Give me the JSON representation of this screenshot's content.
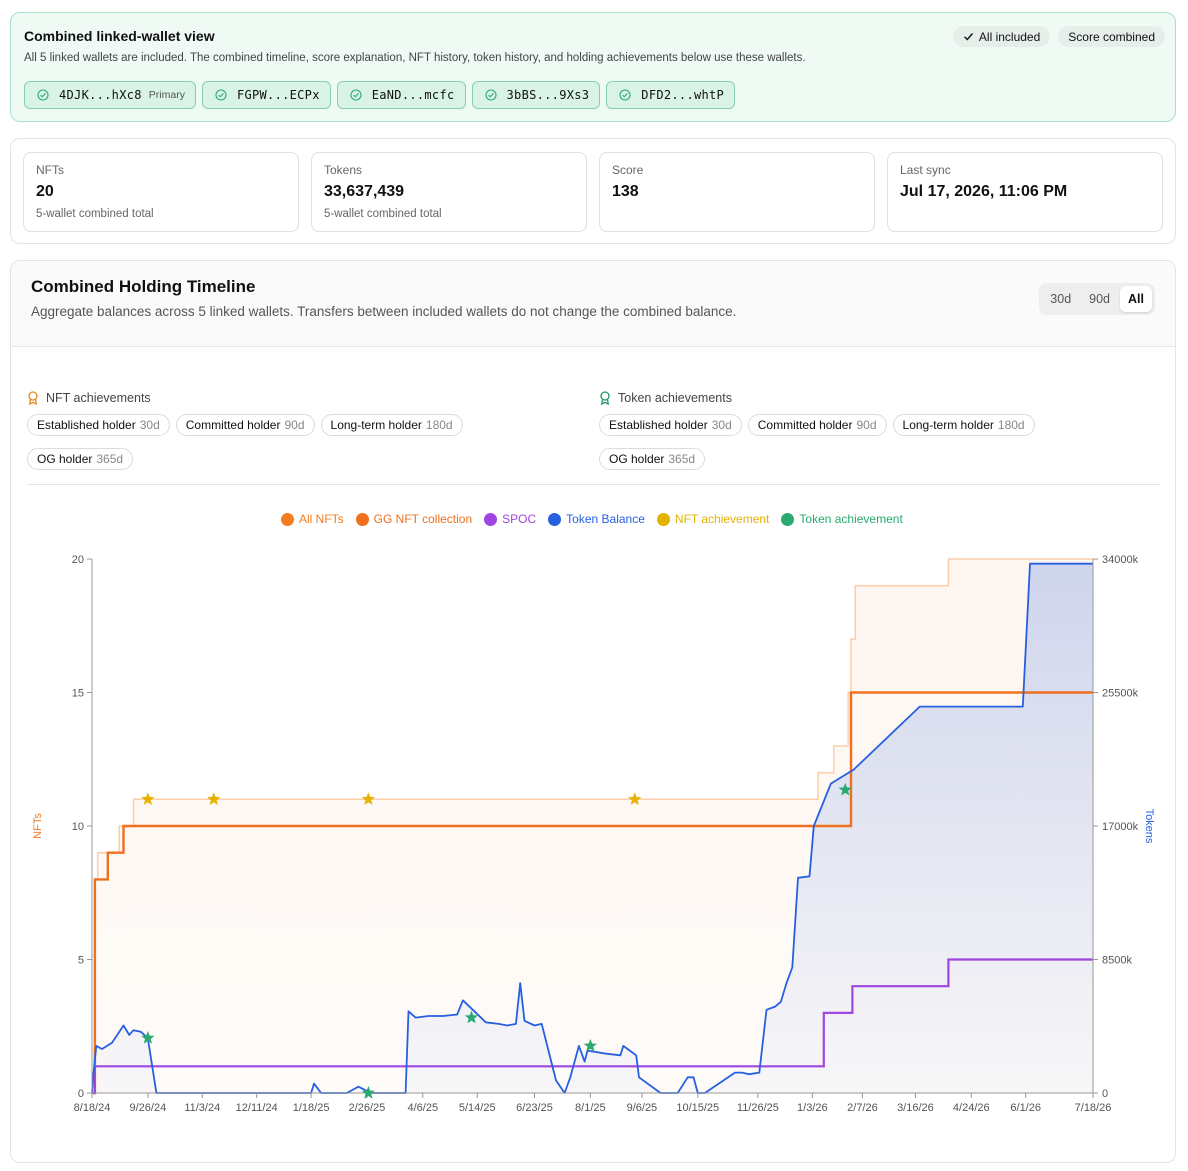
{
  "banner": {
    "title": "Combined linked-wallet view",
    "description": "All 5 linked wallets are included. The combined timeline, score explanation, NFT history, token history, and holding achievements below use these wallets.",
    "badges": {
      "all_included": "All included",
      "score_combined": "Score combined"
    },
    "wallets": [
      {
        "address": "4DJK...hXc8",
        "tag": "Primary"
      },
      {
        "address": "FGPW...ECPx",
        "tag": ""
      },
      {
        "address": "EaND...mcfc",
        "tag": ""
      },
      {
        "address": "3bBS...9Xs3",
        "tag": ""
      },
      {
        "address": "DFD2...whtP",
        "tag": ""
      }
    ]
  },
  "stats": [
    {
      "label": "NFTs",
      "value": "20",
      "sub": "5-wallet combined total"
    },
    {
      "label": "Tokens",
      "value": "33,637,439",
      "sub": "5-wallet combined total"
    },
    {
      "label": "Score",
      "value": "138",
      "sub": ""
    },
    {
      "label": "Last sync",
      "value": "Jul 17, 2026, 11:06 PM",
      "sub": ""
    }
  ],
  "timeline": {
    "title": "Combined Holding Timeline",
    "description": "Aggregate balances across 5 linked wallets. Transfers between included wallets do not change the combined balance.",
    "ranges": [
      "30d",
      "90d",
      "All"
    ],
    "active_range": "All",
    "nft_achievements": {
      "title": "NFT achievements",
      "items": [
        {
          "name": "Established holder",
          "dur": "30d"
        },
        {
          "name": "Committed holder",
          "dur": "90d"
        },
        {
          "name": "Long-term holder",
          "dur": "180d"
        },
        {
          "name": "OG holder",
          "dur": "365d"
        }
      ]
    },
    "token_achievements": {
      "title": "Token achievements",
      "items": [
        {
          "name": "Established holder",
          "dur": "30d"
        },
        {
          "name": "Committed holder",
          "dur": "90d"
        },
        {
          "name": "Long-term holder",
          "dur": "180d"
        },
        {
          "name": "OG holder",
          "dur": "365d"
        }
      ]
    }
  },
  "colors": {
    "all_nfts": "#f47b20",
    "gg_nft": "#f0701f",
    "spoc": "#a046e0",
    "token_balance": "#2660e0",
    "nft_achievement": "#e6b200",
    "token_achievement": "#2aaa70"
  },
  "chart_data": {
    "type": "line",
    "legend": [
      {
        "name": "All NFTs",
        "color": "#f47b20"
      },
      {
        "name": "GG NFT collection",
        "color": "#f0701f"
      },
      {
        "name": "SPOC",
        "color": "#a046e0"
      },
      {
        "name": "Token Balance",
        "color": "#2660e0"
      },
      {
        "name": "NFT achievement",
        "color": "#e6b200"
      },
      {
        "name": "Token achievement",
        "color": "#2aaa70"
      }
    ],
    "legend_position": "top-center",
    "x_start": "8/18/24",
    "x_end": "7/18/26",
    "x_ticks": [
      "8/18/24",
      "9/26/24",
      "11/3/24",
      "12/11/24",
      "1/18/25",
      "2/26/25",
      "4/6/25",
      "5/14/25",
      "6/23/25",
      "8/1/25",
      "9/6/25",
      "10/15/25",
      "11/26/25",
      "1/3/26",
      "2/7/26",
      "3/16/26",
      "4/24/26",
      "6/1/26",
      "7/18/26"
    ],
    "y_left": {
      "label": "NFTs",
      "range": [
        0,
        20
      ],
      "ticks": [
        0,
        5,
        10,
        15,
        20
      ],
      "tick_labels": [
        "0",
        "5",
        "10",
        "15",
        "20"
      ]
    },
    "y_right": {
      "label": "Tokens",
      "range": [
        0,
        34000000
      ],
      "ticks": [
        0,
        8500000,
        17000000,
        25500000,
        34000000
      ],
      "tick_labels": [
        "0",
        "8500k",
        "17000k",
        "25500k",
        "34000k"
      ]
    },
    "grid": false,
    "series": [
      {
        "name": "All NFTs",
        "axis": "left",
        "x": [
          "8/18/24",
          "8/20/24",
          "8/22/24",
          "8/25/24",
          "8/29/24",
          "9/6/24",
          "9/9/24",
          "9/16/24",
          "5/14/25",
          "9/6/25",
          "1/3/26",
          "1/7/26",
          "1/18/26",
          "1/28/26",
          "1/30/26",
          "2/2/26",
          "4/8/26",
          "7/18/26"
        ],
        "y": [
          0,
          8,
          9,
          9,
          9,
          10,
          10,
          11,
          11,
          11,
          11,
          12,
          13,
          15,
          17,
          19,
          20,
          20
        ]
      },
      {
        "name": "GG NFT collection",
        "axis": "left",
        "x": [
          "8/18/24",
          "8/20/24",
          "8/29/24",
          "9/9/24",
          "1/28/26",
          "1/30/26",
          "7/18/26"
        ],
        "y": [
          0,
          8,
          9,
          10,
          10,
          15,
          15
        ]
      },
      {
        "name": "SPOC",
        "axis": "left",
        "x": [
          "8/18/24",
          "8/20/24",
          "1/8/26",
          "1/11/26",
          "1/31/26",
          "4/8/26",
          "7/18/26"
        ],
        "y": [
          0,
          1,
          1,
          3,
          4,
          5,
          5
        ]
      },
      {
        "name": "Token Balance",
        "axis": "right",
        "x": [
          "8/18/24",
          "8/19/24",
          "8/21/24",
          "8/25/24",
          "9/1/24",
          "9/9/24",
          "9/13/24",
          "9/16/24",
          "9/21/24",
          "9/26/24",
          "10/2/24",
          "10/8/24",
          "1/18/25",
          "1/20/25",
          "1/25/25",
          "2/12/25",
          "2/20/25",
          "3/1/25",
          "3/10/25",
          "3/25/25",
          "3/27/25",
          "4/1/25",
          "4/10/25",
          "4/20/25",
          "4/30/25",
          "5/4/25",
          "5/12/25",
          "5/20/25",
          "5/29/25",
          "6/4/25",
          "6/10/25",
          "6/13/25",
          "6/16/25",
          "6/23/25",
          "6/28/25",
          "7/8/25",
          "7/14/25",
          "7/18/25",
          "7/24/25",
          "7/28/25",
          "7/30/25",
          "8/12/25",
          "8/22/25",
          "8/24/25",
          "9/2/25",
          "9/4/25",
          "9/19/25",
          "9/22/25",
          "10/1/25",
          "10/8/25",
          "10/12/25",
          "10/15/25",
          "10/20/25",
          "11/10/25",
          "11/15/25",
          "11/20/25",
          "11/27/25",
          "12/2/25",
          "12/8/25",
          "12/12/25",
          "12/16/25",
          "12/20/25",
          "12/24/25",
          "1/1/26",
          "1/4/26",
          "1/16/26",
          "2/1/26",
          "3/19/26",
          "4/8/26",
          "5/30/26",
          "6/4/26",
          "7/18/26"
        ],
        "y": [
          0,
          1200000,
          3000000,
          2800000,
          3200000,
          4300000,
          3700000,
          4000000,
          3900000,
          3500000,
          0,
          0,
          0,
          600000,
          0,
          0,
          400000,
          0,
          0,
          0,
          5200000,
          4800000,
          4900000,
          4900000,
          5000000,
          5900000,
          5200000,
          4500000,
          4400000,
          4300000,
          4400000,
          7000000,
          4600000,
          4300000,
          4400000,
          800000,
          0,
          1000000,
          3000000,
          2000000,
          2700000,
          2500000,
          2400000,
          3000000,
          2400000,
          1000000,
          0,
          0,
          0,
          1000000,
          1000000,
          0,
          0,
          1300000,
          1300000,
          1200000,
          1300000,
          5300000,
          5500000,
          5800000,
          7000000,
          8000000,
          13700000,
          13800000,
          17000000,
          19700000,
          20600000,
          24600000,
          24600000,
          24600000,
          33700000,
          33700000
        ]
      }
    ],
    "nft_achievement_markers": {
      "x": [
        "9/26/24",
        "11/11/24",
        "2/27/25",
        "9/1/25"
      ],
      "y": [
        11,
        11,
        11,
        11
      ]
    },
    "token_achievement_markers": {
      "x": [
        "9/26/24",
        "2/27/25",
        "5/10/25",
        "8/1/25",
        "1/26/26"
      ],
      "y": [
        3500000,
        0,
        4800000,
        3000000,
        19300000
      ]
    }
  }
}
